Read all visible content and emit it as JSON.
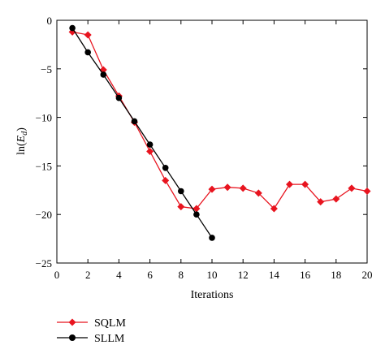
{
  "chart_data": {
    "type": "line",
    "xlabel": "Iterations",
    "ylabel_main": "ln(",
    "ylabel_var": "E",
    "ylabel_sub": "d",
    "ylabel_close": ")",
    "xlim": [
      0,
      20
    ],
    "ylim": [
      -25,
      0
    ],
    "xticks": [
      0,
      2,
      4,
      6,
      8,
      10,
      12,
      14,
      16,
      18,
      20
    ],
    "yticks": [
      0,
      -5,
      -10,
      -15,
      -20,
      -25
    ],
    "grid": false,
    "legend_position": "below-left",
    "series": [
      {
        "name": "SQLM",
        "color": "#e8141f",
        "marker": "diamond",
        "x": [
          1,
          2,
          3,
          4,
          5,
          6,
          7,
          8,
          9,
          10,
          11,
          12,
          13,
          14,
          15,
          16,
          17,
          18,
          19,
          20
        ],
        "y": [
          -1.2,
          -1.5,
          -5.1,
          -7.8,
          -10.5,
          -13.5,
          -16.5,
          -19.2,
          -19.4,
          -17.4,
          -17.2,
          -17.3,
          -17.8,
          -19.4,
          -16.9,
          -16.9,
          -18.7,
          -18.4,
          -17.3,
          -17.6
        ]
      },
      {
        "name": "SLLM",
        "color": "#000000",
        "marker": "circle",
        "x": [
          1,
          2,
          3,
          4,
          5,
          6,
          7,
          8,
          9,
          10
        ],
        "y": [
          -0.8,
          -3.3,
          -5.6,
          -8.0,
          -10.4,
          -12.8,
          -15.2,
          -17.6,
          -20.0,
          -22.4
        ]
      }
    ]
  }
}
